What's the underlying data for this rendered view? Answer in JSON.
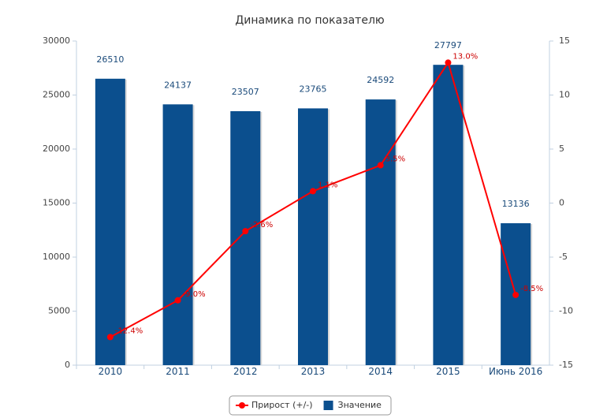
{
  "chart_data": {
    "type": "bar_line",
    "title": "Динамика по показателю",
    "categories": [
      "2010",
      "2011",
      "2012",
      "2013",
      "2014",
      "2015",
      "Июнь 2016"
    ],
    "series": [
      {
        "name": "Прирост (+/-)",
        "type": "line",
        "axis": "y2",
        "color": "#ff0000",
        "values": [
          -12.4,
          -9.0,
          -2.6,
          1.1,
          3.5,
          13.0,
          -8.5
        ],
        "value_labels": [
          "-12.4%",
          "-9.0%",
          "-2.6%",
          "1.1%",
          "3.5%",
          "13.0%",
          "-8.5%"
        ]
      },
      {
        "name": "Значение",
        "type": "bar",
        "color": "#0b4f8e",
        "values": [
          26510,
          24137,
          23507,
          23765,
          24592,
          27797,
          13136
        ]
      }
    ],
    "ylim": [
      0,
      30000
    ],
    "yticks": [
      0,
      5000,
      10000,
      15000,
      20000,
      25000,
      30000
    ],
    "y2lim": [
      -15,
      15
    ],
    "y2ticks": [
      -15,
      -10,
      -5,
      0,
      5,
      10,
      15
    ],
    "legend": "bottom"
  }
}
